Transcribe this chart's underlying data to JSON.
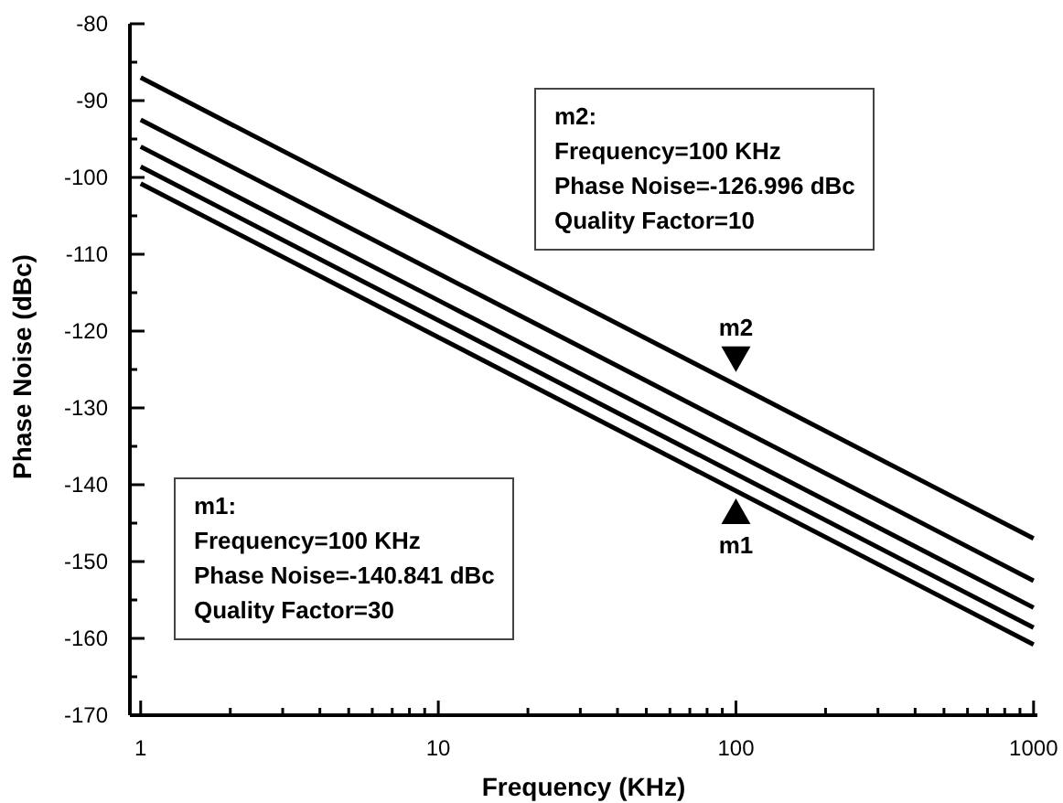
{
  "chart_data": {
    "type": "line",
    "xlabel": "Frequency (KHz)",
    "ylabel": "Phase Noise (dBc)",
    "log": "x",
    "marker": "none",
    "grid": false,
    "x": [
      1,
      10,
      100,
      1000
    ],
    "series": [
      {
        "color": "#000000",
        "values": [
          -87,
          -107,
          -127,
          -147
        ]
      },
      {
        "color": "#000000",
        "values": [
          -92.5,
          -112.5,
          -132.5,
          -152.5
        ]
      },
      {
        "color": "#000000",
        "values": [
          -96,
          -116,
          -136,
          -156
        ]
      },
      {
        "color": "#000000",
        "values": [
          -98.6,
          -118.6,
          -138.6,
          -158.6
        ]
      },
      {
        "color": "#000000",
        "values": [
          -100.8,
          -120.8,
          -140.8,
          -160.8
        ]
      }
    ],
    "xlim": [
      0.92,
      1030
    ],
    "xticks": [
      1,
      {
        "value": 2,
        "label": null
      },
      {
        "value": 3,
        "label": null
      },
      {
        "value": 4,
        "label": null
      },
      {
        "value": 5,
        "label": null
      },
      {
        "value": 6,
        "label": null
      },
      {
        "value": 7,
        "label": null
      },
      {
        "value": 8,
        "label": null
      },
      {
        "value": 9,
        "label": null
      },
      10,
      {
        "value": 20,
        "label": null
      },
      {
        "value": 30,
        "label": null
      },
      {
        "value": 40,
        "label": null
      },
      {
        "value": 50,
        "label": null
      },
      {
        "value": 60,
        "label": null
      },
      {
        "value": 70,
        "label": null
      },
      {
        "value": 80,
        "label": null
      },
      {
        "value": 90,
        "label": null
      },
      100,
      {
        "value": 200,
        "label": null
      },
      {
        "value": 300,
        "label": null
      },
      {
        "value": 400,
        "label": null
      },
      {
        "value": 500,
        "label": null
      },
      {
        "value": 600,
        "label": null
      },
      {
        "value": 700,
        "label": null
      },
      {
        "value": 800,
        "label": null
      },
      {
        "value": 900,
        "label": null
      },
      1000
    ],
    "ylim": [
      -170,
      -80
    ],
    "yticks": [
      -170,
      {
        "value": -165,
        "label": null
      },
      -160,
      {
        "value": -155,
        "label": null
      },
      -150,
      {
        "value": -145,
        "label": null
      },
      -140,
      {
        "value": -135,
        "label": null
      },
      -130,
      {
        "value": -125,
        "label": null
      },
      -120,
      {
        "value": -115,
        "label": null
      },
      -110,
      {
        "value": -105,
        "label": null
      },
      -100,
      {
        "value": -95,
        "label": null
      },
      -90,
      {
        "value": -85,
        "label": null
      },
      -80
    ],
    "annotations": [
      "m2:\nFrequency=100 KHz\nPhase Noise=-126.996 dBc\nQuality Factor=10",
      {
        "text": "m2",
        "x": 100,
        "y": -126.996
      },
      "m1:\nFrequency=100 KHz\nPhase Noise=-140.841 dBc\nQuality Factor=30",
      {
        "text": "m1",
        "x": 100,
        "y": -140.841
      }
    ]
  }
}
